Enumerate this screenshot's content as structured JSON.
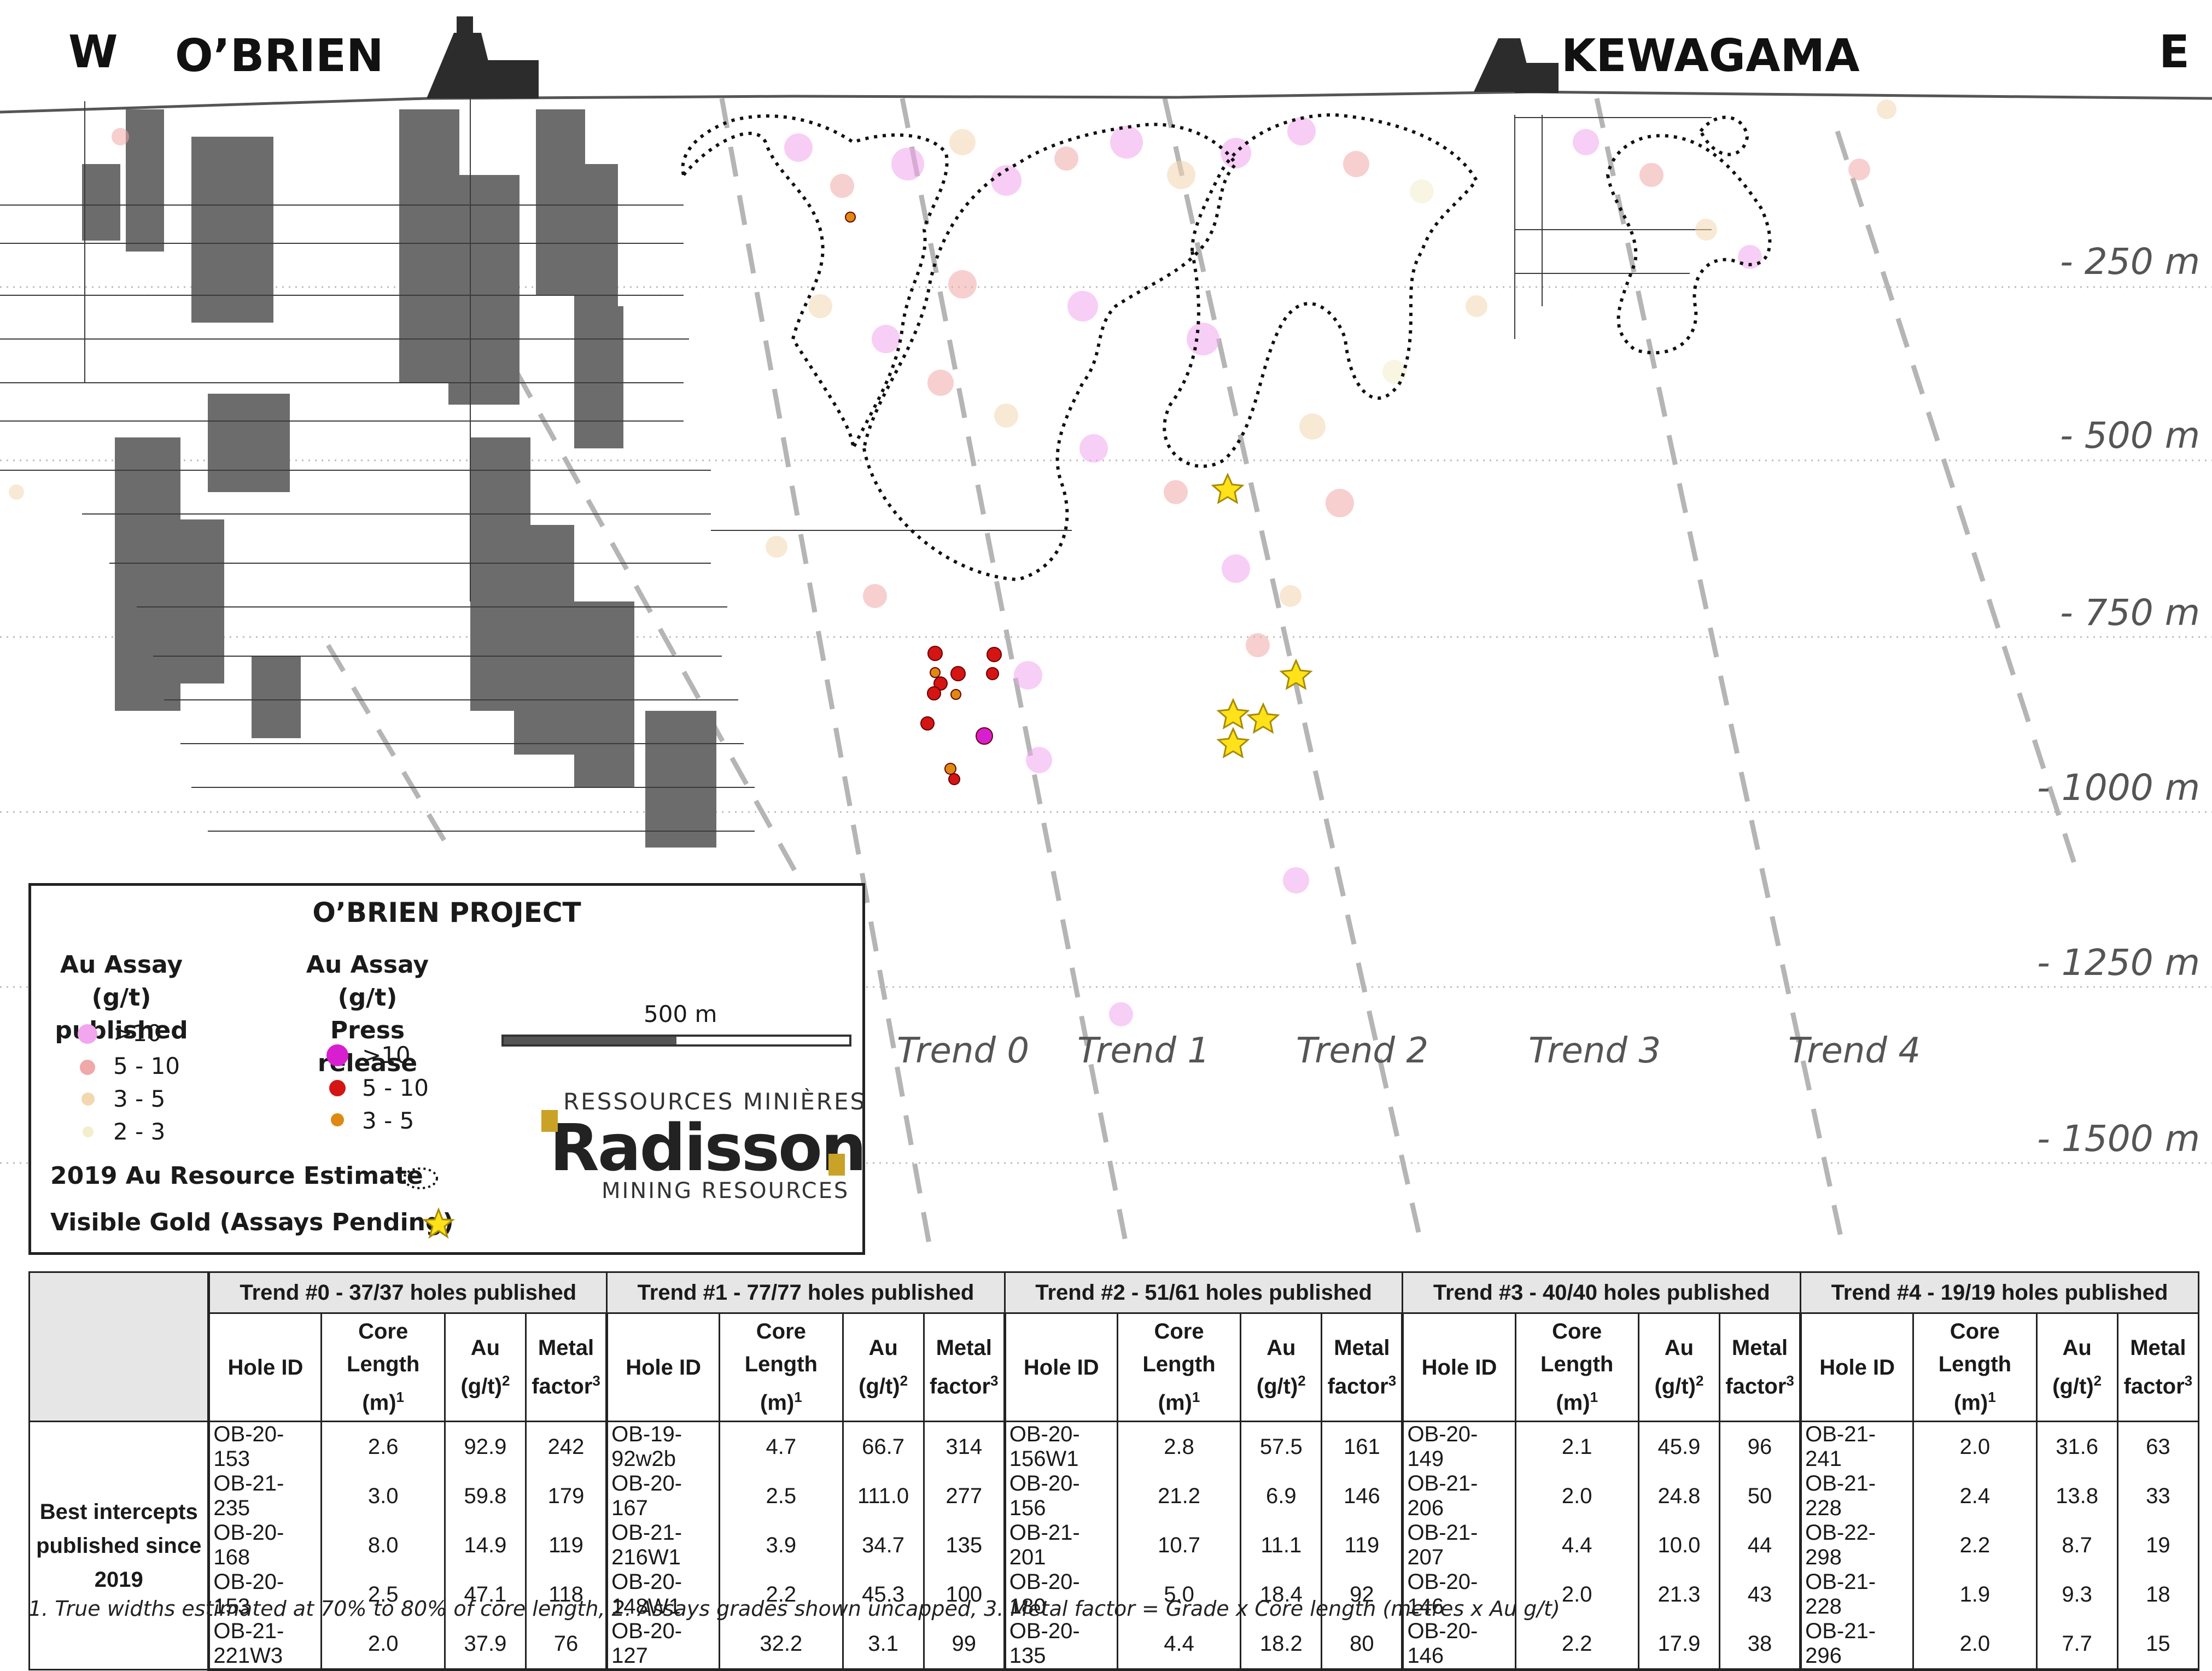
{
  "header": {
    "west": "W",
    "east": "E",
    "obrien": "O’BRIEN",
    "kewagama": "KEWAGAMA"
  },
  "depths": [
    "- 250 m",
    "- 500 m",
    "- 750 m",
    "- 1000 m",
    "- 1250 m",
    "- 1500 m"
  ],
  "trends": [
    "Trend 0",
    "Trend 1",
    "Trend 2",
    "Trend 3",
    "Trend 4"
  ],
  "legend": {
    "title": "O’BRIEN PROJECT",
    "published_heading_1": "Au Assay (g/t)",
    "published_heading_2": "published",
    "press_heading_1": "Au Assay (g/t)",
    "press_heading_2": "Press release",
    "published_items": [
      ">10",
      "5 - 10",
      "3 - 5",
      "2 - 3"
    ],
    "press_items": [
      ">10",
      "5 - 10",
      "3 - 5"
    ],
    "scale_label": "500 m",
    "resource_label": "2019 Au Resource Estimate",
    "visible_gold_label": "Visible Gold (Assays Pending)",
    "colors": {
      "published_gt10": "#f1a6ee",
      "published_5_10": "#f0a8a8",
      "published_3_5": "#f3d7b0",
      "published_2_3": "#f3eecb",
      "press_gt10": "#d81fd0",
      "press_5_10": "#d51414",
      "press_3_5": "#de8a12",
      "visible_gold": "#ffe21a"
    }
  },
  "brand": {
    "line1": "RESSOURCES MINIÈRES",
    "line2": "Radisson",
    "line3": "MINING RESOURCES"
  },
  "table": {
    "row_header": "Best intercepts published since 2019",
    "col_hole_id": "Hole ID",
    "col_core_1": "Core",
    "col_core_2": "Length",
    "col_core_3": "(m)",
    "col_core_sup": "1",
    "col_au_1": "Au",
    "col_au_2": "(g/t)",
    "col_au_sup": "2",
    "col_au_inline": "Au (g/t)",
    "col_metal_1": "Metal",
    "col_metal_2": "factor",
    "col_metal_sup": "3",
    "groups": [
      {
        "title": "Trend #0 - 37/37 holes published",
        "rows": [
          [
            "OB-20-153",
            "2.6",
            "92.9",
            "242"
          ],
          [
            "OB-21-235",
            "3.0",
            "59.8",
            "179"
          ],
          [
            "OB-20-168",
            "8.0",
            "14.9",
            "119"
          ],
          [
            "OB-20-153",
            "2.5",
            "47.1",
            "118"
          ],
          [
            "OB-21-221W3",
            "2.0",
            "37.9",
            "76"
          ]
        ]
      },
      {
        "title": "Trend #1 - 77/77 holes published",
        "rows": [
          [
            "OB-19-92w2b",
            "4.7",
            "66.7",
            "314"
          ],
          [
            "OB-20-167",
            "2.5",
            "111.0",
            "277"
          ],
          [
            "OB-21-216W1",
            "3.9",
            "34.7",
            "135"
          ],
          [
            "OB-20-148W1",
            "2.2",
            "45.3",
            "100"
          ],
          [
            "OB-20-127",
            "32.2",
            "3.1",
            "99"
          ]
        ]
      },
      {
        "title": "Trend #2 - 51/61 holes published",
        "rows": [
          [
            "OB-20-156W1",
            "2.8",
            "57.5",
            "161"
          ],
          [
            "OB-20-156",
            "21.2",
            "6.9",
            "146"
          ],
          [
            "OB-21-201",
            "10.7",
            "11.1",
            "119"
          ],
          [
            "OB-20-180",
            "5.0",
            "18.4",
            "92"
          ],
          [
            "OB-20-135",
            "4.4",
            "18.2",
            "80"
          ]
        ]
      },
      {
        "title": "Trend #3 - 40/40 holes published",
        "rows": [
          [
            "OB-20-149",
            "2.1",
            "45.9",
            "96"
          ],
          [
            "OB-21-206",
            "2.0",
            "24.8",
            "50"
          ],
          [
            "OB-21-207",
            "4.4",
            "10.0",
            "44"
          ],
          [
            "OB-20-146",
            "2.0",
            "21.3",
            "43"
          ],
          [
            "OB-20-146",
            "2.2",
            "17.9",
            "38"
          ]
        ]
      },
      {
        "title": "Trend #4 - 19/19 holes published",
        "rows": [
          [
            "OB-21-241",
            "2.0",
            "31.6",
            "63"
          ],
          [
            "OB-21-228",
            "2.4",
            "13.8",
            "33"
          ],
          [
            "OB-22-298",
            "2.2",
            "8.7",
            "19"
          ],
          [
            "OB-21-228",
            "1.9",
            "9.3",
            "18"
          ],
          [
            "OB-21-296",
            "2.0",
            "7.7",
            "15"
          ]
        ]
      }
    ]
  },
  "footnote": "1. True widths estimated at 70% to 80% of core length, 2. Assays grades shown uncapped, 3. Metal factor = Grade x Core length (metres x Au g/t)"
}
